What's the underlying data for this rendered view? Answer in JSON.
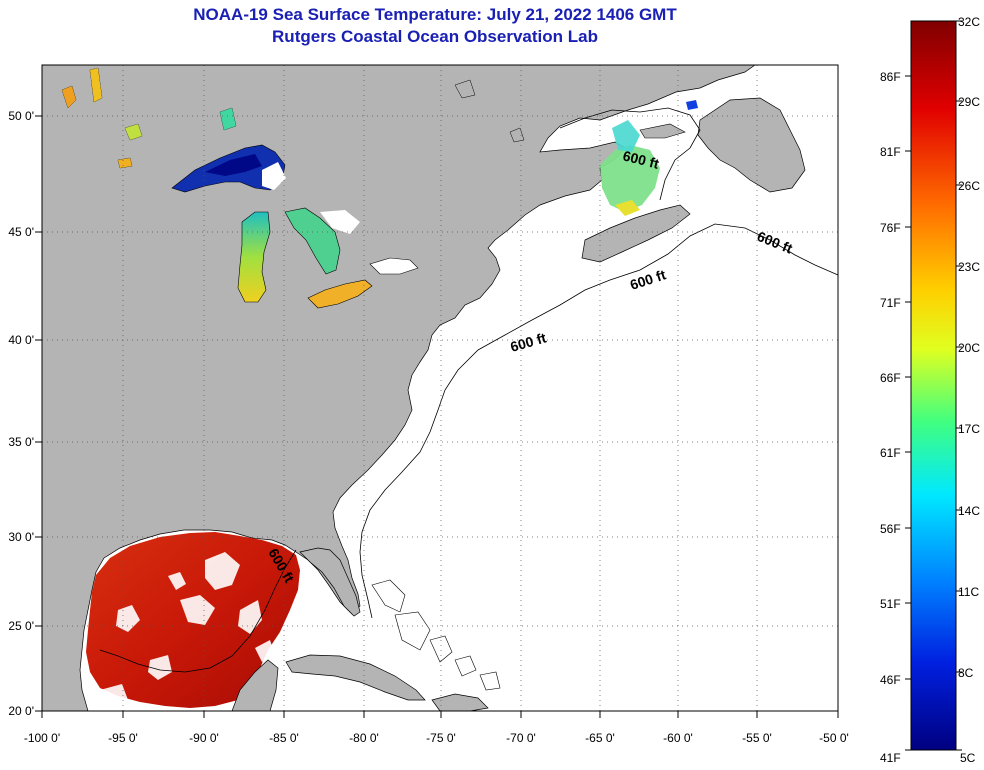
{
  "title": {
    "line1": "NOAA-19 Sea Surface Temperature:  July 21, 2022 1406 GMT",
    "line2": "Rutgers Coastal Ocean Observation Lab"
  },
  "map": {
    "lon_ticks": [
      "-100 0'",
      "-95 0'",
      "-90 0'",
      "-85 0'",
      "-80 0'",
      "-75 0'",
      "-70 0'",
      "-65 0'",
      "-60 0'",
      "-55 0'",
      "-50 0'"
    ],
    "lat_ticks": [
      "50 0'",
      "45 0'",
      "40 0'",
      "35 0'",
      "30 0'",
      "25 0'",
      "20 0'"
    ],
    "contour_label": "600 ft",
    "land_color": "#b4b4b4",
    "ocean_color": "#ffffff"
  },
  "colorbar": {
    "celsius": [
      "32C",
      "29C",
      "26C",
      "23C",
      "20C",
      "17C",
      "14C",
      "11C",
      "8C",
      "5C"
    ],
    "fahrenheit": [
      "86F",
      "81F",
      "76F",
      "71F",
      "66F",
      "61F",
      "56F",
      "51F",
      "46F",
      "41F"
    ]
  }
}
